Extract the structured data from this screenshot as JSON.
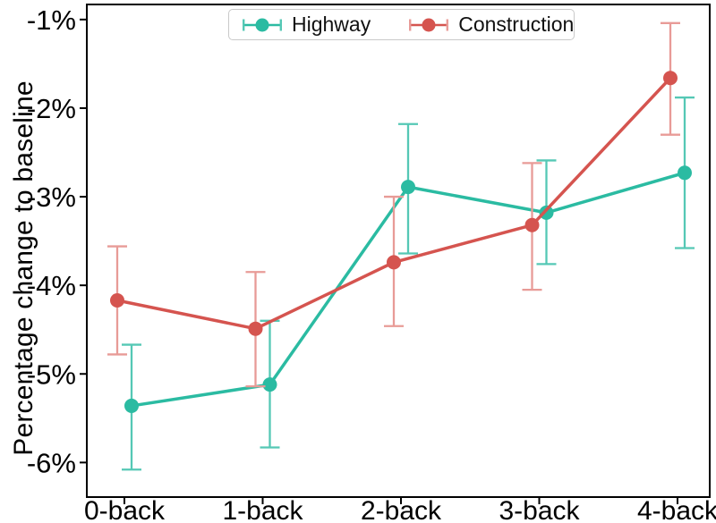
{
  "figure": {
    "y_axis_title": "Percentage change to baseline",
    "x_axis_title": ""
  },
  "chart_data": {
    "type": "line",
    "title": "",
    "xlabel": "",
    "ylabel": "Percentage change to baseline",
    "categories": [
      "0-back",
      "1-back",
      "2-back",
      "3-back",
      "4-back"
    ],
    "ytick_labels": [
      "-1%",
      "-2%",
      "-3%",
      "-4%",
      "-5%",
      "-6%"
    ],
    "ytick_values": [
      -1,
      -2,
      -3,
      -4,
      -5,
      -6
    ],
    "ylim": [
      -6.39,
      -0.83
    ],
    "grid": false,
    "legend_position": "upper center",
    "error_bars": true,
    "series": [
      {
        "name": "Highway",
        "color": "#2bbba2",
        "error_color": "#55c8b5",
        "values": [
          -5.36,
          -5.12,
          -2.89,
          -3.18,
          -2.73
        ],
        "error_upper": [
          -4.67,
          -4.4,
          -2.18,
          -2.59,
          -1.88
        ],
        "error_lower": [
          -6.08,
          -5.83,
          -3.64,
          -3.76,
          -3.58
        ]
      },
      {
        "name": "Construction",
        "color": "#d5544f",
        "error_color": "#e89b97",
        "values": [
          -4.17,
          -4.49,
          -3.74,
          -3.32,
          -1.66
        ],
        "error_upper": [
          -3.56,
          -3.85,
          -3.0,
          -2.62,
          -1.04
        ],
        "error_lower": [
          -4.78,
          -5.14,
          -4.46,
          -4.05,
          -2.3
        ]
      }
    ]
  }
}
